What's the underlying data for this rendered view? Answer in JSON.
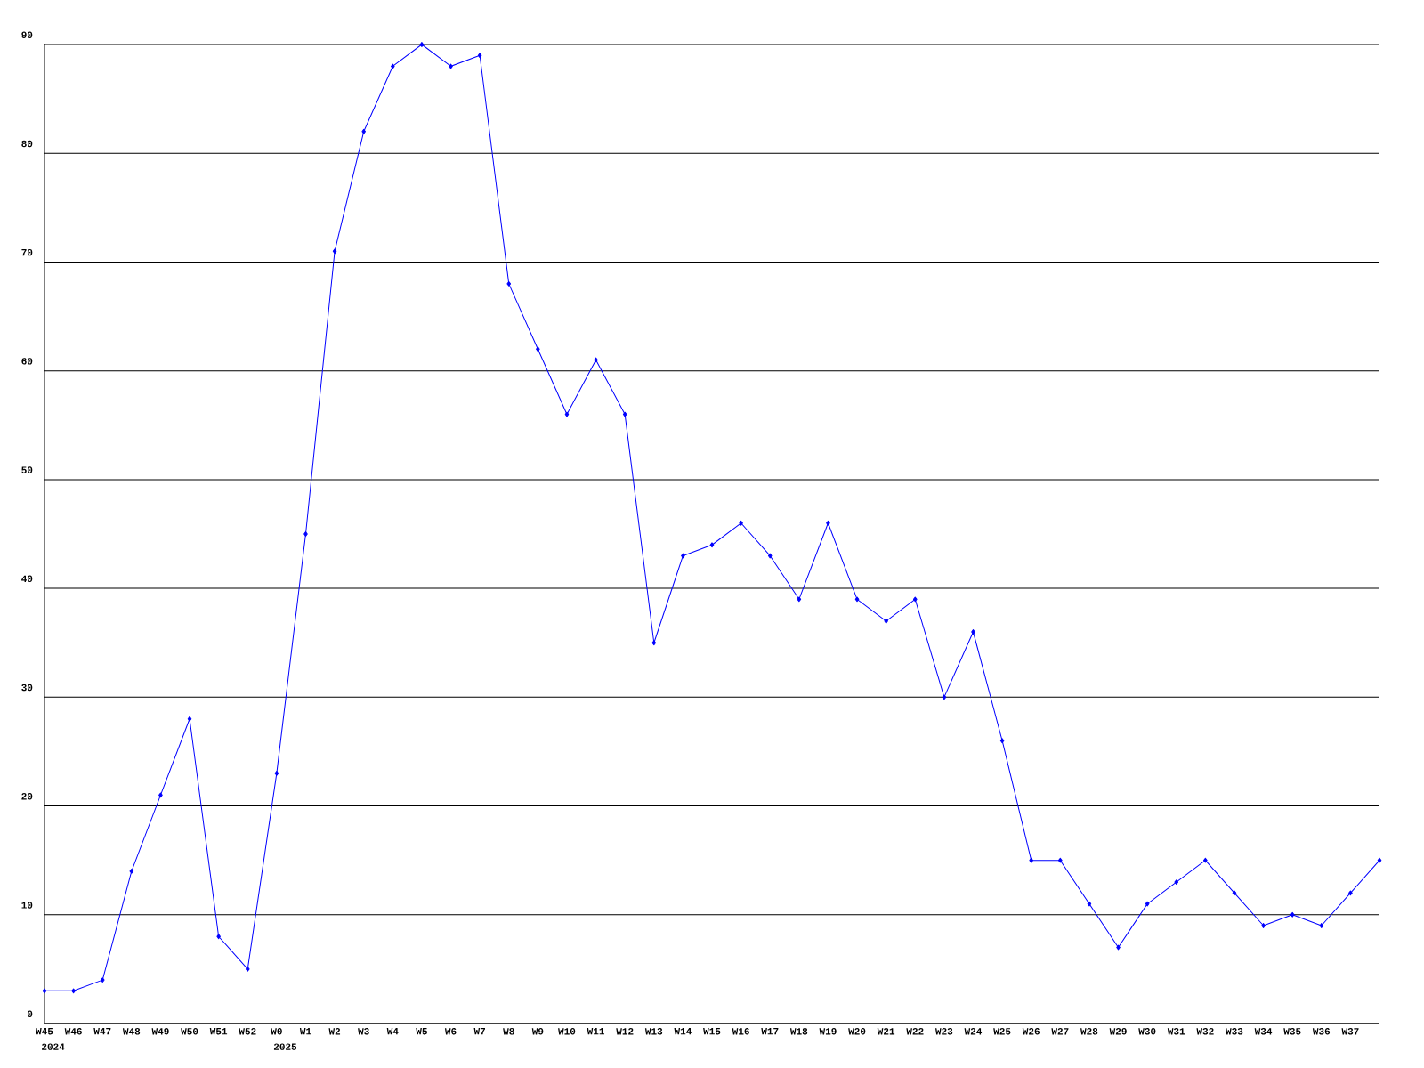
{
  "chart_data": {
    "type": "line",
    "categories": [
      "W45",
      "W46",
      "W47",
      "W48",
      "W49",
      "W50",
      "W51",
      "W52",
      "W0",
      "W1",
      "W2",
      "W3",
      "W4",
      "W5",
      "W6",
      "W7",
      "W8",
      "W9",
      "W10",
      "W11",
      "W12",
      "W13",
      "W14",
      "W15",
      "W16",
      "W17",
      "W18",
      "W19",
      "W20",
      "W21",
      "W22",
      "W23",
      "W24",
      "W25",
      "W26",
      "W27",
      "W28",
      "W29",
      "W30",
      "W31",
      "W32",
      "W33",
      "W34",
      "W35",
      "W36",
      "W37",
      null
    ],
    "values": [
      3,
      3,
      4,
      14,
      21,
      28,
      8,
      5,
      23,
      45,
      71,
      82,
      88,
      90,
      88,
      89,
      68,
      62,
      56,
      61,
      56,
      35,
      43,
      44,
      46,
      43,
      39,
      46,
      39,
      37,
      39,
      30,
      36,
      26,
      15,
      15,
      11,
      7,
      11,
      13,
      15,
      12,
      9,
      10,
      9,
      12,
      15
    ],
    "color": "#0000ff",
    "marker": "diamond",
    "grid": "y",
    "ylim": [
      0,
      90
    ],
    "yticks": [
      0,
      10,
      20,
      30,
      40,
      50,
      60,
      70,
      80,
      90
    ],
    "annotations": [
      "2024",
      "2025"
    ]
  }
}
